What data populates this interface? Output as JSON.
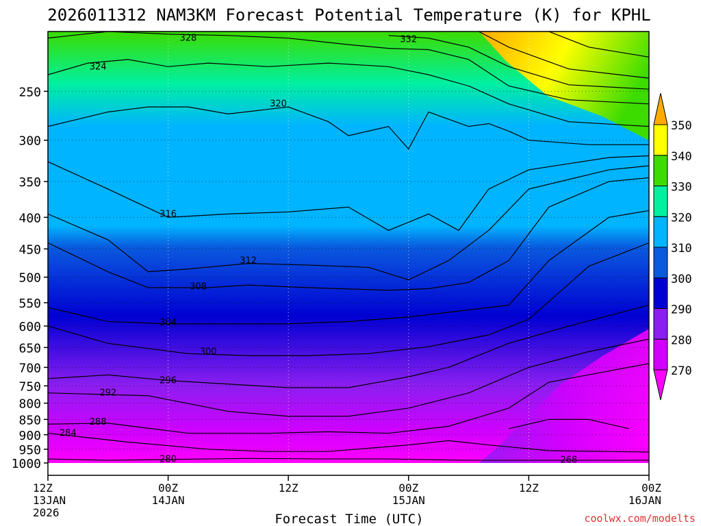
{
  "chart_data": {
    "type": "heatmap",
    "title": "2026011312 NAM3KM Forecast Potential Temperature (K) for KPHL",
    "xlabel": "Forecast Time (UTC)",
    "ylabel": "",
    "credit": "coolwx.com/modelts",
    "x_range_hours": [
      0,
      60
    ],
    "y_range_hPa": [
      1000,
      200
    ],
    "y_ticks": [
      250,
      300,
      350,
      400,
      450,
      500,
      550,
      600,
      650,
      700,
      750,
      800,
      850,
      900,
      950,
      1000
    ],
    "x_ticks": [
      {
        "hour": 0,
        "line1": "12Z",
        "line2": "13JAN",
        "line3": "2026"
      },
      {
        "hour": 12,
        "line1": "00Z",
        "line2": "14JAN",
        "line3": ""
      },
      {
        "hour": 24,
        "line1": "12Z",
        "line2": "",
        "line3": ""
      },
      {
        "hour": 36,
        "line1": "00Z",
        "line2": "15JAN",
        "line3": ""
      },
      {
        "hour": 48,
        "line1": "12Z",
        "line2": "",
        "line3": ""
      },
      {
        "hour": 60,
        "line1": "00Z",
        "line2": "16JAN",
        "line3": ""
      }
    ],
    "colorbar": {
      "levels": [
        270,
        280,
        290,
        300,
        310,
        320,
        330,
        340,
        350
      ],
      "colors": [
        "#ff00ff",
        "#d200ff",
        "#8c1ef0",
        "#0000d2",
        "#0a5ade",
        "#00b4ff",
        "#00f0a0",
        "#3cdc00",
        "#ffff00",
        "#ffaa00"
      ]
    },
    "contours": [
      {
        "value": 268,
        "points": [
          [
            46,
            880
          ],
          [
            50,
            850
          ],
          [
            54,
            850
          ],
          [
            58,
            880
          ]
        ],
        "label": {
          "hour": 52,
          "p": 988
        }
      },
      {
        "value": 280,
        "points": [
          [
            0,
            985
          ],
          [
            6,
            990
          ],
          [
            12,
            987
          ],
          [
            20,
            983
          ],
          [
            28,
            985
          ],
          [
            34,
            985
          ],
          [
            42,
            990
          ],
          [
            48,
            990
          ],
          [
            60,
            990
          ]
        ],
        "label": {
          "hour": 12,
          "p": 986
        }
      },
      {
        "value": 284,
        "points": [
          [
            0,
            895
          ],
          [
            8,
            925
          ],
          [
            16,
            950
          ],
          [
            22,
            958
          ],
          [
            28,
            958
          ],
          [
            36,
            935
          ],
          [
            40,
            920
          ],
          [
            44,
            935
          ],
          [
            50,
            955
          ],
          [
            60,
            960
          ]
        ],
        "label": {
          "hour": 2,
          "p": 895
        }
      },
      {
        "value": 288,
        "points": [
          [
            0,
            865
          ],
          [
            6,
            862
          ],
          [
            14,
            895
          ],
          [
            22,
            895
          ],
          [
            28,
            890
          ],
          [
            34,
            895
          ],
          [
            40,
            872
          ],
          [
            46,
            815
          ],
          [
            50,
            740
          ],
          [
            60,
            690
          ]
        ],
        "label": {
          "hour": 5,
          "p": 858
        }
      },
      {
        "value": 292,
        "points": [
          [
            0,
            770
          ],
          [
            10,
            778
          ],
          [
            18,
            825
          ],
          [
            24,
            840
          ],
          [
            30,
            840
          ],
          [
            36,
            815
          ],
          [
            42,
            770
          ],
          [
            48,
            700
          ],
          [
            54,
            660
          ],
          [
            60,
            630
          ]
        ],
        "label": {
          "hour": 6,
          "p": 770
        }
      },
      {
        "value": 296,
        "points": [
          [
            0,
            730
          ],
          [
            6,
            720
          ],
          [
            12,
            735
          ],
          [
            18,
            745
          ],
          [
            24,
            755
          ],
          [
            30,
            755
          ],
          [
            36,
            725
          ],
          [
            40,
            700
          ],
          [
            46,
            640
          ],
          [
            52,
            600
          ],
          [
            60,
            555
          ]
        ],
        "label": {
          "hour": 12,
          "p": 735
        }
      },
      {
        "value": 300,
        "points": [
          [
            0,
            600
          ],
          [
            6,
            640
          ],
          [
            14,
            665
          ],
          [
            20,
            670
          ],
          [
            26,
            670
          ],
          [
            32,
            665
          ],
          [
            38,
            648
          ],
          [
            44,
            620
          ],
          [
            48,
            585
          ],
          [
            54,
            480
          ],
          [
            60,
            440
          ]
        ],
        "label": {
          "hour": 16,
          "p": 660
        }
      },
      {
        "value": 304,
        "points": [
          [
            0,
            560
          ],
          [
            6,
            590
          ],
          [
            12,
            595
          ],
          [
            18,
            595
          ],
          [
            24,
            595
          ],
          [
            30,
            590
          ],
          [
            36,
            580
          ],
          [
            42,
            565
          ],
          [
            46,
            555
          ],
          [
            50,
            470
          ],
          [
            56,
            400
          ],
          [
            60,
            390
          ]
        ],
        "label": {
          "hour": 12,
          "p": 592
        }
      },
      {
        "value": 308,
        "points": [
          [
            0,
            440
          ],
          [
            6,
            490
          ],
          [
            10,
            520
          ],
          [
            16,
            520
          ],
          [
            20,
            515
          ],
          [
            26,
            520
          ],
          [
            34,
            525
          ],
          [
            38,
            522
          ],
          [
            42,
            510
          ],
          [
            46,
            470
          ],
          [
            50,
            385
          ],
          [
            56,
            350
          ],
          [
            60,
            345
          ]
        ],
        "label": {
          "hour": 15,
          "p": 518
        }
      },
      {
        "value": 312,
        "points": [
          [
            0,
            395
          ],
          [
            6,
            435
          ],
          [
            10,
            490
          ],
          [
            14,
            485
          ],
          [
            20,
            475
          ],
          [
            26,
            478
          ],
          [
            32,
            482
          ],
          [
            36,
            505
          ],
          [
            40,
            470
          ],
          [
            44,
            420
          ],
          [
            48,
            360
          ],
          [
            56,
            335
          ],
          [
            60,
            330
          ]
        ],
        "label": {
          "hour": 20,
          "p": 470
        }
      },
      {
        "value": 316,
        "points": [
          [
            0,
            325
          ],
          [
            6,
            360
          ],
          [
            12,
            400
          ],
          [
            18,
            395
          ],
          [
            24,
            392
          ],
          [
            30,
            385
          ],
          [
            34,
            420
          ],
          [
            38,
            395
          ],
          [
            41,
            420
          ],
          [
            44,
            360
          ],
          [
            48,
            335
          ],
          [
            56,
            320
          ],
          [
            60,
            318
          ]
        ],
        "label": {
          "hour": 12,
          "p": 395
        }
      },
      {
        "value": 320,
        "points": [
          [
            0,
            285
          ],
          [
            6,
            270
          ],
          [
            10,
            265
          ],
          [
            14,
            265
          ],
          [
            18,
            272
          ],
          [
            24,
            265
          ],
          [
            28,
            280
          ],
          [
            30,
            295
          ],
          [
            34,
            285
          ],
          [
            36,
            310
          ],
          [
            38,
            270
          ],
          [
            42,
            285
          ],
          [
            44,
            282
          ],
          [
            46,
            290
          ],
          [
            48,
            300
          ],
          [
            54,
            305
          ],
          [
            60,
            305
          ]
        ],
        "label": {
          "hour": 23,
          "p": 262
        }
      },
      {
        "value": 324,
        "points": [
          [
            0,
            235
          ],
          [
            4,
            225
          ],
          [
            8,
            222
          ],
          [
            12,
            228
          ],
          [
            16,
            225
          ],
          [
            22,
            228
          ],
          [
            28,
            225
          ],
          [
            34,
            228
          ],
          [
            38,
            235
          ],
          [
            42,
            245
          ],
          [
            46,
            262
          ],
          [
            52,
            280
          ],
          [
            60,
            285
          ]
        ],
        "label": {
          "hour": 5,
          "p": 228
        }
      },
      {
        "value": 328,
        "points": [
          [
            0,
            205
          ],
          [
            6,
            200
          ],
          [
            12,
            202
          ],
          [
            18,
            203
          ],
          [
            24,
            205
          ],
          [
            30,
            210
          ],
          [
            34,
            213
          ],
          [
            38,
            214
          ],
          [
            42,
            222
          ],
          [
            46,
            245
          ],
          [
            52,
            258
          ],
          [
            60,
            262
          ]
        ],
        "label": {
          "hour": 14,
          "p": 205
        }
      },
      {
        "value": 332,
        "points": [
          [
            34,
            203
          ],
          [
            38,
            205
          ],
          [
            42,
            212
          ],
          [
            46,
            228
          ],
          [
            52,
            244
          ],
          [
            60,
            248
          ]
        ],
        "label": {
          "hour": 36,
          "p": 206
        }
      },
      {
        "value": 340,
        "points": [
          [
            43,
            200
          ],
          [
            46,
            212
          ],
          [
            52,
            230
          ],
          [
            60,
            238
          ]
        ],
        "label": null
      },
      {
        "value": 350,
        "points": [
          [
            50,
            200
          ],
          [
            54,
            212
          ],
          [
            60,
            220
          ]
        ],
        "label": null
      }
    ]
  }
}
